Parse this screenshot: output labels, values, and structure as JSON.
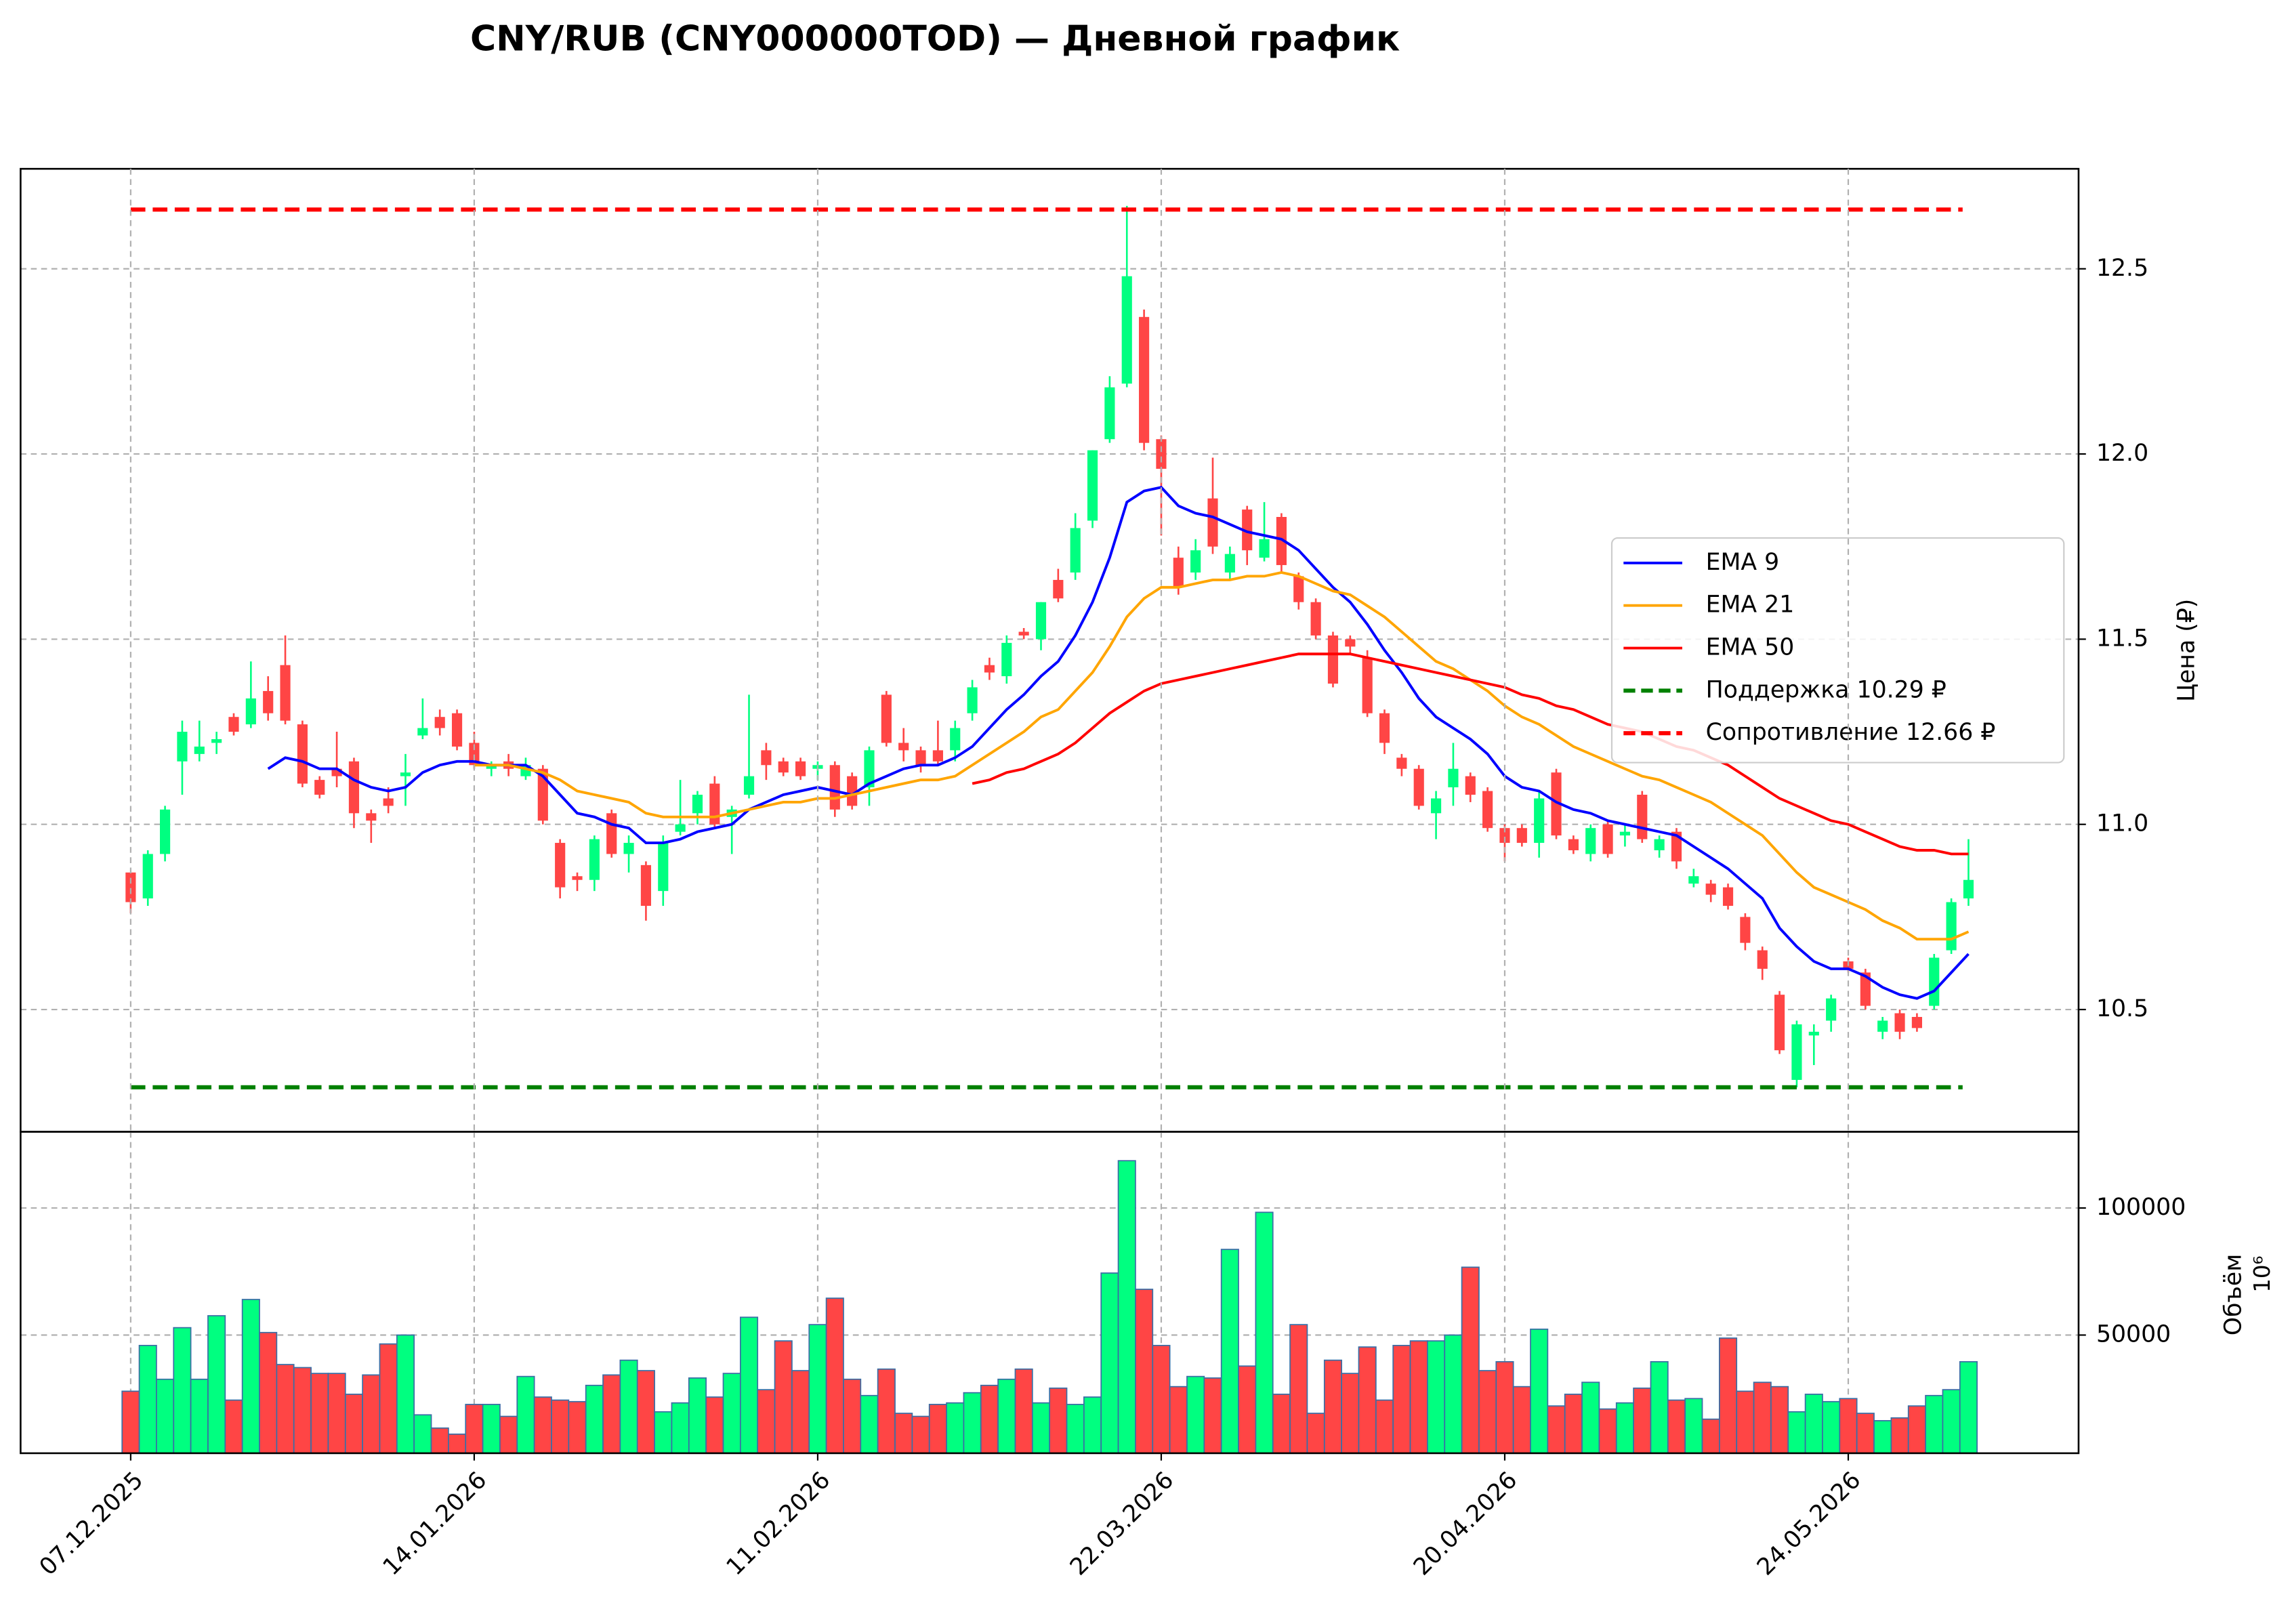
{
  "chart_data": [
    {
      "type": "candlestick",
      "title": "CNY/RUB (CNY000000TOD) — Дневной график",
      "ylabel": "Цена (₽)",
      "up_color": "#00ff80",
      "down_color": "#ff4545",
      "grid": true,
      "legend": "center right",
      "ylim": [
        10.17,
        12.77
      ],
      "yticks": [
        10.5,
        {
          "value": 11,
          "label": "11.0"
        },
        11.5,
        {
          "value": 12,
          "label": "12.0"
        },
        12.5
      ],
      "open": [
        10.87,
        10.8,
        10.92,
        11.17,
        11.19,
        11.22,
        11.29,
        11.27,
        11.36,
        11.43,
        11.27,
        11.12,
        11.15,
        11.17,
        11.03,
        11.07,
        11.13,
        11.24,
        11.29,
        11.3,
        11.22,
        11.15,
        11.17,
        11.13,
        11.15,
        10.95,
        10.86,
        10.85,
        11.03,
        10.92,
        10.89,
        10.82,
        10.98,
        11.03,
        11.11,
        11.02,
        11.08,
        11.2,
        11.17,
        11.17,
        11.15,
        11.16,
        11.13,
        11.1,
        11.35,
        11.22,
        11.2,
        11.2,
        11.2,
        11.3,
        11.43,
        11.4,
        11.52,
        11.5,
        11.66,
        11.68,
        11.82,
        12.04,
        12.19,
        12.37,
        12.04,
        11.72,
        11.68,
        11.88,
        11.68,
        11.85,
        11.72,
        11.83,
        11.67,
        11.6,
        11.51,
        11.5,
        11.45,
        11.3,
        11.18,
        11.15,
        11.03,
        11.1,
        11.13,
        11.09,
        10.99,
        10.99,
        10.95,
        11.14,
        10.96,
        10.92,
        11.0,
        10.97,
        11.08,
        10.93,
        10.98,
        10.84,
        10.84,
        10.83,
        10.75,
        10.66,
        10.54,
        10.31,
        10.43,
        10.47,
        10.63,
        10.6,
        10.44,
        10.49,
        10.48,
        10.51,
        10.66,
        10.8
      ],
      "high": [
        10.87,
        10.93,
        11.05,
        11.28,
        11.28,
        11.25,
        11.3,
        11.44,
        11.4,
        11.51,
        11.28,
        11.13,
        11.25,
        11.18,
        11.04,
        11.1,
        11.19,
        11.34,
        11.31,
        11.31,
        11.25,
        11.17,
        11.19,
        11.18,
        11.16,
        10.96,
        10.87,
        10.97,
        11.04,
        10.97,
        10.9,
        10.97,
        11.12,
        11.09,
        11.13,
        11.05,
        11.35,
        11.22,
        11.18,
        11.18,
        11.17,
        11.17,
        11.14,
        11.21,
        11.36,
        11.26,
        11.21,
        11.28,
        11.28,
        11.39,
        11.45,
        11.51,
        11.53,
        11.6,
        11.69,
        11.84,
        12.01,
        12.21,
        12.67,
        12.39,
        12.05,
        11.75,
        11.77,
        11.99,
        11.75,
        11.86,
        11.87,
        11.84,
        11.68,
        11.61,
        11.52,
        11.51,
        11.47,
        11.31,
        11.19,
        11.16,
        11.09,
        11.22,
        11.14,
        11.1,
        11.0,
        11.0,
        11.09,
        11.15,
        10.97,
        11.0,
        11.01,
        11.0,
        11.09,
        10.97,
        10.99,
        10.88,
        10.85,
        10.84,
        10.76,
        10.67,
        10.55,
        10.47,
        10.46,
        10.54,
        10.64,
        10.61,
        10.48,
        10.5,
        10.49,
        10.65,
        10.8,
        10.96
      ],
      "low": [
        10.76,
        10.78,
        10.9,
        11.08,
        11.17,
        11.19,
        11.24,
        11.26,
        11.28,
        11.27,
        11.1,
        11.07,
        11.1,
        10.99,
        10.95,
        11.03,
        11.05,
        11.23,
        11.24,
        11.2,
        11.15,
        11.13,
        11.13,
        11.12,
        11.0,
        10.8,
        10.82,
        10.82,
        10.91,
        10.87,
        10.74,
        10.78,
        10.97,
        11.0,
        10.99,
        10.92,
        11.07,
        11.12,
        11.13,
        11.12,
        11.12,
        11.02,
        11.04,
        11.05,
        11.21,
        11.17,
        11.14,
        11.16,
        11.17,
        11.28,
        11.39,
        11.38,
        11.5,
        11.47,
        11.6,
        11.66,
        11.8,
        12.03,
        12.18,
        12.01,
        11.78,
        11.62,
        11.66,
        11.73,
        11.66,
        11.7,
        11.71,
        11.68,
        11.58,
        11.5,
        11.37,
        11.46,
        11.29,
        11.19,
        11.13,
        11.04,
        10.96,
        11.05,
        11.06,
        10.98,
        10.9,
        10.94,
        10.91,
        10.96,
        10.92,
        10.9,
        10.91,
        10.94,
        10.95,
        10.91,
        10.88,
        10.83,
        10.79,
        10.77,
        10.66,
        10.58,
        10.38,
        10.29,
        10.35,
        10.44,
        10.6,
        10.5,
        10.42,
        10.42,
        10.44,
        10.5,
        10.65,
        10.78
      ],
      "close": [
        10.79,
        10.92,
        11.04,
        11.25,
        11.21,
        11.23,
        11.25,
        11.34,
        11.3,
        11.28,
        11.11,
        11.08,
        11.13,
        11.03,
        11.01,
        11.05,
        11.14,
        11.26,
        11.26,
        11.21,
        11.16,
        11.16,
        11.15,
        11.16,
        11.01,
        10.83,
        10.85,
        10.96,
        10.92,
        10.95,
        10.78,
        10.95,
        11.0,
        11.08,
        11.0,
        11.04,
        11.13,
        11.16,
        11.14,
        11.13,
        11.16,
        11.04,
        11.05,
        11.2,
        11.22,
        11.2,
        11.16,
        11.17,
        11.26,
        11.37,
        11.41,
        11.49,
        11.51,
        11.6,
        11.61,
        11.8,
        12.01,
        12.18,
        12.48,
        12.03,
        11.96,
        11.64,
        11.74,
        11.75,
        11.73,
        11.74,
        11.77,
        11.7,
        11.6,
        11.51,
        11.38,
        11.48,
        11.3,
        11.22,
        11.15,
        11.05,
        11.07,
        11.15,
        11.08,
        10.99,
        10.95,
        10.95,
        11.07,
        10.97,
        10.93,
        10.99,
        10.92,
        10.98,
        10.96,
        10.96,
        10.9,
        10.86,
        10.81,
        10.78,
        10.68,
        10.61,
        10.39,
        10.46,
        10.44,
        10.53,
        10.61,
        10.51,
        10.47,
        10.44,
        10.45,
        10.64,
        10.79,
        10.85
      ],
      "series": [
        {
          "name": "EMA 9",
          "color": "#0000ff",
          "values": [
            null,
            null,
            null,
            null,
            null,
            null,
            null,
            null,
            11.15,
            11.18,
            11.17,
            11.15,
            11.15,
            11.12,
            11.1,
            11.09,
            11.1,
            11.14,
            11.16,
            11.17,
            11.17,
            11.16,
            11.16,
            11.16,
            11.13,
            11.08,
            11.03,
            11.02,
            11.0,
            10.99,
            10.95,
            10.95,
            10.96,
            10.98,
            10.99,
            11.0,
            11.04,
            11.06,
            11.08,
            11.09,
            11.1,
            11.09,
            11.08,
            11.11,
            11.13,
            11.15,
            11.16,
            11.16,
            11.18,
            11.21,
            11.26,
            11.31,
            11.35,
            11.4,
            11.44,
            11.51,
            11.6,
            11.72,
            11.87,
            11.9,
            11.91,
            11.86,
            11.84,
            11.83,
            11.81,
            11.79,
            11.78,
            11.77,
            11.74,
            11.69,
            11.64,
            11.6,
            11.54,
            11.47,
            11.41,
            11.34,
            11.29,
            11.26,
            11.23,
            11.19,
            11.13,
            11.1,
            11.09,
            11.06,
            11.04,
            11.03,
            11.01,
            11.0,
            10.99,
            10.98,
            10.97,
            10.94,
            10.91,
            10.88,
            10.84,
            10.8,
            10.72,
            10.67,
            10.63,
            10.61,
            10.61,
            10.59,
            10.56,
            10.54,
            10.53,
            10.55,
            10.6,
            10.65
          ]
        },
        {
          "name": "EMA 21",
          "color": "#ffa500",
          "values": [
            null,
            null,
            null,
            null,
            null,
            null,
            null,
            null,
            null,
            null,
            null,
            null,
            null,
            null,
            null,
            null,
            null,
            null,
            null,
            null,
            11.16,
            11.16,
            11.16,
            11.15,
            11.14,
            11.12,
            11.09,
            11.08,
            11.07,
            11.06,
            11.03,
            11.02,
            11.02,
            11.02,
            11.02,
            11.03,
            11.04,
            11.05,
            11.06,
            11.06,
            11.07,
            11.07,
            11.08,
            11.09,
            11.1,
            11.11,
            11.12,
            11.12,
            11.13,
            11.16,
            11.19,
            11.22,
            11.25,
            11.29,
            11.31,
            11.36,
            11.41,
            11.48,
            11.56,
            11.61,
            11.64,
            11.64,
            11.65,
            11.66,
            11.66,
            11.67,
            11.67,
            11.68,
            11.67,
            11.65,
            11.63,
            11.62,
            11.59,
            11.56,
            11.52,
            11.48,
            11.44,
            11.42,
            11.39,
            11.36,
            11.32,
            11.29,
            11.27,
            11.24,
            11.21,
            11.19,
            11.17,
            11.15,
            11.13,
            11.12,
            11.1,
            11.08,
            11.06,
            11.03,
            11.0,
            10.97,
            10.92,
            10.87,
            10.83,
            10.81,
            10.79,
            10.77,
            10.74,
            10.72,
            10.69,
            10.69,
            10.69,
            10.71
          ]
        },
        {
          "name": "EMA 50",
          "color": "#ff0000",
          "values": [
            null,
            null,
            null,
            null,
            null,
            null,
            null,
            null,
            null,
            null,
            null,
            null,
            null,
            null,
            null,
            null,
            null,
            null,
            null,
            null,
            null,
            null,
            null,
            null,
            null,
            null,
            null,
            null,
            null,
            null,
            null,
            null,
            null,
            null,
            null,
            null,
            null,
            null,
            null,
            null,
            null,
            null,
            null,
            null,
            null,
            null,
            null,
            null,
            null,
            11.11,
            11.12,
            11.14,
            11.15,
            11.17,
            11.19,
            11.22,
            11.26,
            11.3,
            11.33,
            11.36,
            11.38,
            11.39,
            11.4,
            11.41,
            11.42,
            11.43,
            11.44,
            11.45,
            11.46,
            11.46,
            11.46,
            11.46,
            11.45,
            11.44,
            11.43,
            11.42,
            11.41,
            11.4,
            11.39,
            11.38,
            11.37,
            11.35,
            11.34,
            11.32,
            11.31,
            11.29,
            11.27,
            11.26,
            11.25,
            11.23,
            11.21,
            11.2,
            11.18,
            11.16,
            11.13,
            11.1,
            11.07,
            11.05,
            11.03,
            11.01,
            11.0,
            10.98,
            10.96,
            10.94,
            10.93,
            10.93,
            10.92,
            10.92
          ]
        }
      ],
      "levels": [
        {
          "name": "Поддержка 10.29 ₽",
          "value": 10.29,
          "color": "#008000",
          "style": "dashed"
        },
        {
          "name": "Сопротивление 12.66 ₽",
          "value": 12.66,
          "color": "#ff0000",
          "style": "dashed"
        }
      ]
    },
    {
      "type": "bar",
      "ylabel": "Объём",
      "offset_text": "10⁶",
      "edgecolor": "#3a6ea5",
      "grid": true,
      "ylim": [
        3500,
        130000
      ],
      "yticks": [
        50000,
        100000
      ],
      "categories": [
        "07.12.2025",
        null,
        null,
        null,
        null,
        null,
        null,
        null,
        null,
        null,
        null,
        null,
        null,
        null,
        null,
        null,
        null,
        null,
        null,
        null,
        "14.01.2026",
        null,
        null,
        null,
        null,
        null,
        null,
        null,
        null,
        null,
        null,
        null,
        null,
        null,
        null,
        null,
        null,
        null,
        null,
        null,
        "11.02.2026",
        null,
        null,
        null,
        null,
        null,
        null,
        null,
        null,
        null,
        null,
        null,
        null,
        null,
        null,
        null,
        null,
        null,
        null,
        null,
        "22.03.2026",
        null,
        null,
        null,
        null,
        null,
        null,
        null,
        null,
        null,
        null,
        null,
        null,
        null,
        null,
        null,
        null,
        null,
        null,
        null,
        "20.04.2026",
        null,
        null,
        null,
        null,
        null,
        null,
        null,
        null,
        null,
        null,
        null,
        null,
        null,
        null,
        null,
        null,
        null,
        null,
        null,
        "24.05.2026",
        null,
        null,
        null,
        null,
        null,
        null,
        null
      ],
      "values": [
        27900,
        45900,
        32600,
        52900,
        32600,
        57600,
        24400,
        64000,
        51000,
        38400,
        37200,
        34900,
        34900,
        26700,
        34300,
        46500,
        50000,
        18600,
        13400,
        11000,
        22700,
        22700,
        18000,
        33700,
        25600,
        24400,
        23800,
        30200,
        34300,
        40100,
        36000,
        19800,
        23300,
        33100,
        25600,
        34900,
        57000,
        28500,
        47700,
        36000,
        54100,
        64500,
        32600,
        26200,
        36600,
        19200,
        18000,
        22700,
        23300,
        27300,
        30200,
        32600,
        36600,
        23300,
        29100,
        22700,
        25600,
        74400,
        118600,
        68000,
        45900,
        29700,
        33700,
        33100,
        83700,
        37800,
        98300,
        26700,
        54100,
        19200,
        40100,
        34900,
        45300,
        24400,
        45900,
        47700,
        47700,
        50000,
        76700,
        36000,
        39500,
        29700,
        52300,
        22100,
        26700,
        31400,
        20900,
        23300,
        29100,
        39500,
        24400,
        25000,
        16900,
        48800,
        27900,
        31400,
        29700,
        19800,
        26700,
        23800,
        25000,
        19200,
        16300,
        17400,
        22100,
        26200,
        28500,
        39500
      ]
    }
  ]
}
